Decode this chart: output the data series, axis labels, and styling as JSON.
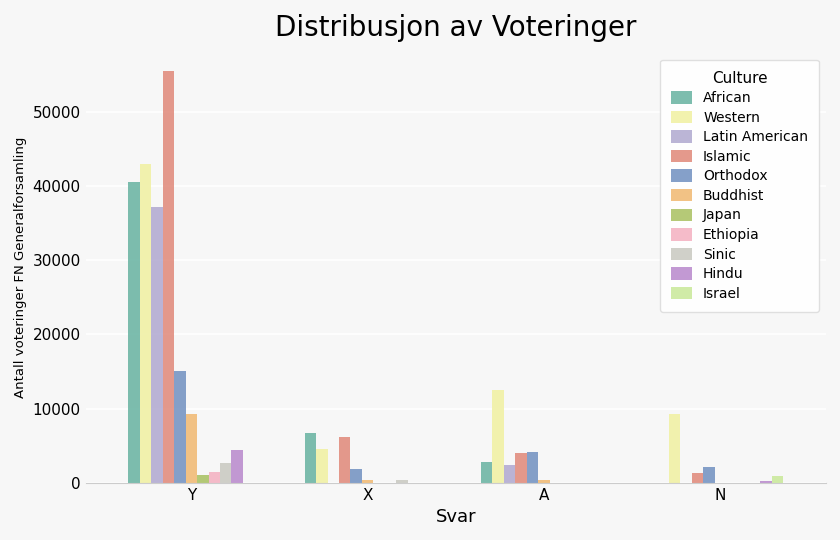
{
  "title": "Distribusjon av Voteringer",
  "xlabel": "Svar",
  "ylabel": "Antall voteringer FN Generalforsamling",
  "categories": [
    "Y",
    "X",
    "A",
    "N"
  ],
  "cultures": [
    "African",
    "Western",
    "Latin American",
    "Islamic",
    "Orthodox",
    "Buddhist",
    "Japan",
    "Ethiopia",
    "Sinic",
    "Hindu",
    "Israel"
  ],
  "colors": [
    "#66b2a0",
    "#f0f0a0",
    "#b0a8d0",
    "#e08878",
    "#7090c0",
    "#f0b870",
    "#a8c060",
    "#f4b0c0",
    "#c8c8c0",
    "#b888cc",
    "#c8e898"
  ],
  "data": {
    "African": [
      40500,
      6700,
      2800,
      0
    ],
    "Western": [
      43000,
      4500,
      12500,
      9300
    ],
    "Latin American": [
      37200,
      0,
      2400,
      0
    ],
    "Islamic": [
      55500,
      6100,
      4000,
      1300
    ],
    "Orthodox": [
      15000,
      1800,
      4200,
      2100
    ],
    "Buddhist": [
      9200,
      400,
      400,
      0
    ],
    "Japan": [
      1100,
      0,
      0,
      0
    ],
    "Ethiopia": [
      1500,
      0,
      0,
      0
    ],
    "Sinic": [
      2600,
      400,
      0,
      0
    ],
    "Hindu": [
      4400,
      0,
      0,
      200
    ],
    "Israel": [
      0,
      0,
      0,
      900
    ]
  },
  "ylim": [
    0,
    58000
  ],
  "yticks": [
    0,
    10000,
    20000,
    30000,
    40000,
    50000
  ],
  "background_color": "#f7f7f7",
  "plot_bg_color": "#f7f7f7",
  "legend_title": "Culture",
  "title_fontsize": 20,
  "axis_label_fontsize": 13,
  "tick_fontsize": 11,
  "legend_fontsize": 10
}
